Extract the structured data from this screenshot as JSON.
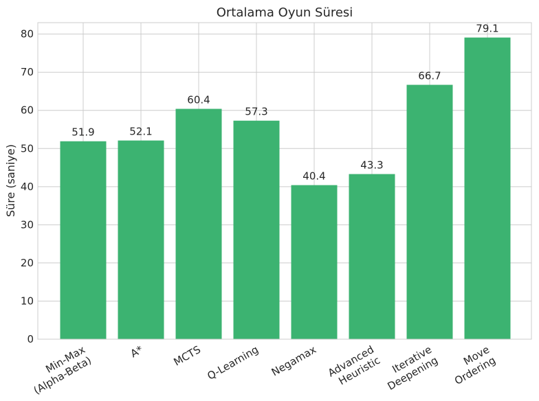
{
  "chart_data": {
    "type": "bar",
    "title": "Ortalama Oyun Süresi",
    "xlabel": "",
    "ylabel": "Süre (saniye)",
    "categories": [
      [
        "Min-Max",
        "(Alpha-Beta)"
      ],
      [
        "A*"
      ],
      [
        "MCTS"
      ],
      [
        "Q-Learning"
      ],
      [
        "Negamax"
      ],
      [
        "Advanced",
        "Heuristic"
      ],
      [
        "Iterative",
        "Deepening"
      ],
      [
        "Move",
        "Ordering"
      ]
    ],
    "values": [
      51.9,
      52.1,
      60.4,
      57.3,
      40.4,
      43.3,
      66.7,
      79.1
    ],
    "value_labels": [
      "51.9",
      "52.1",
      "60.4",
      "57.3",
      "40.4",
      "43.3",
      "66.7",
      "79.1"
    ],
    "ylim": [
      0,
      83
    ],
    "yticks": [
      0,
      10,
      20,
      30,
      40,
      50,
      60,
      70,
      80
    ],
    "grid": true,
    "legend": "none",
    "colors": {
      "bar": "#3cb371"
    }
  }
}
